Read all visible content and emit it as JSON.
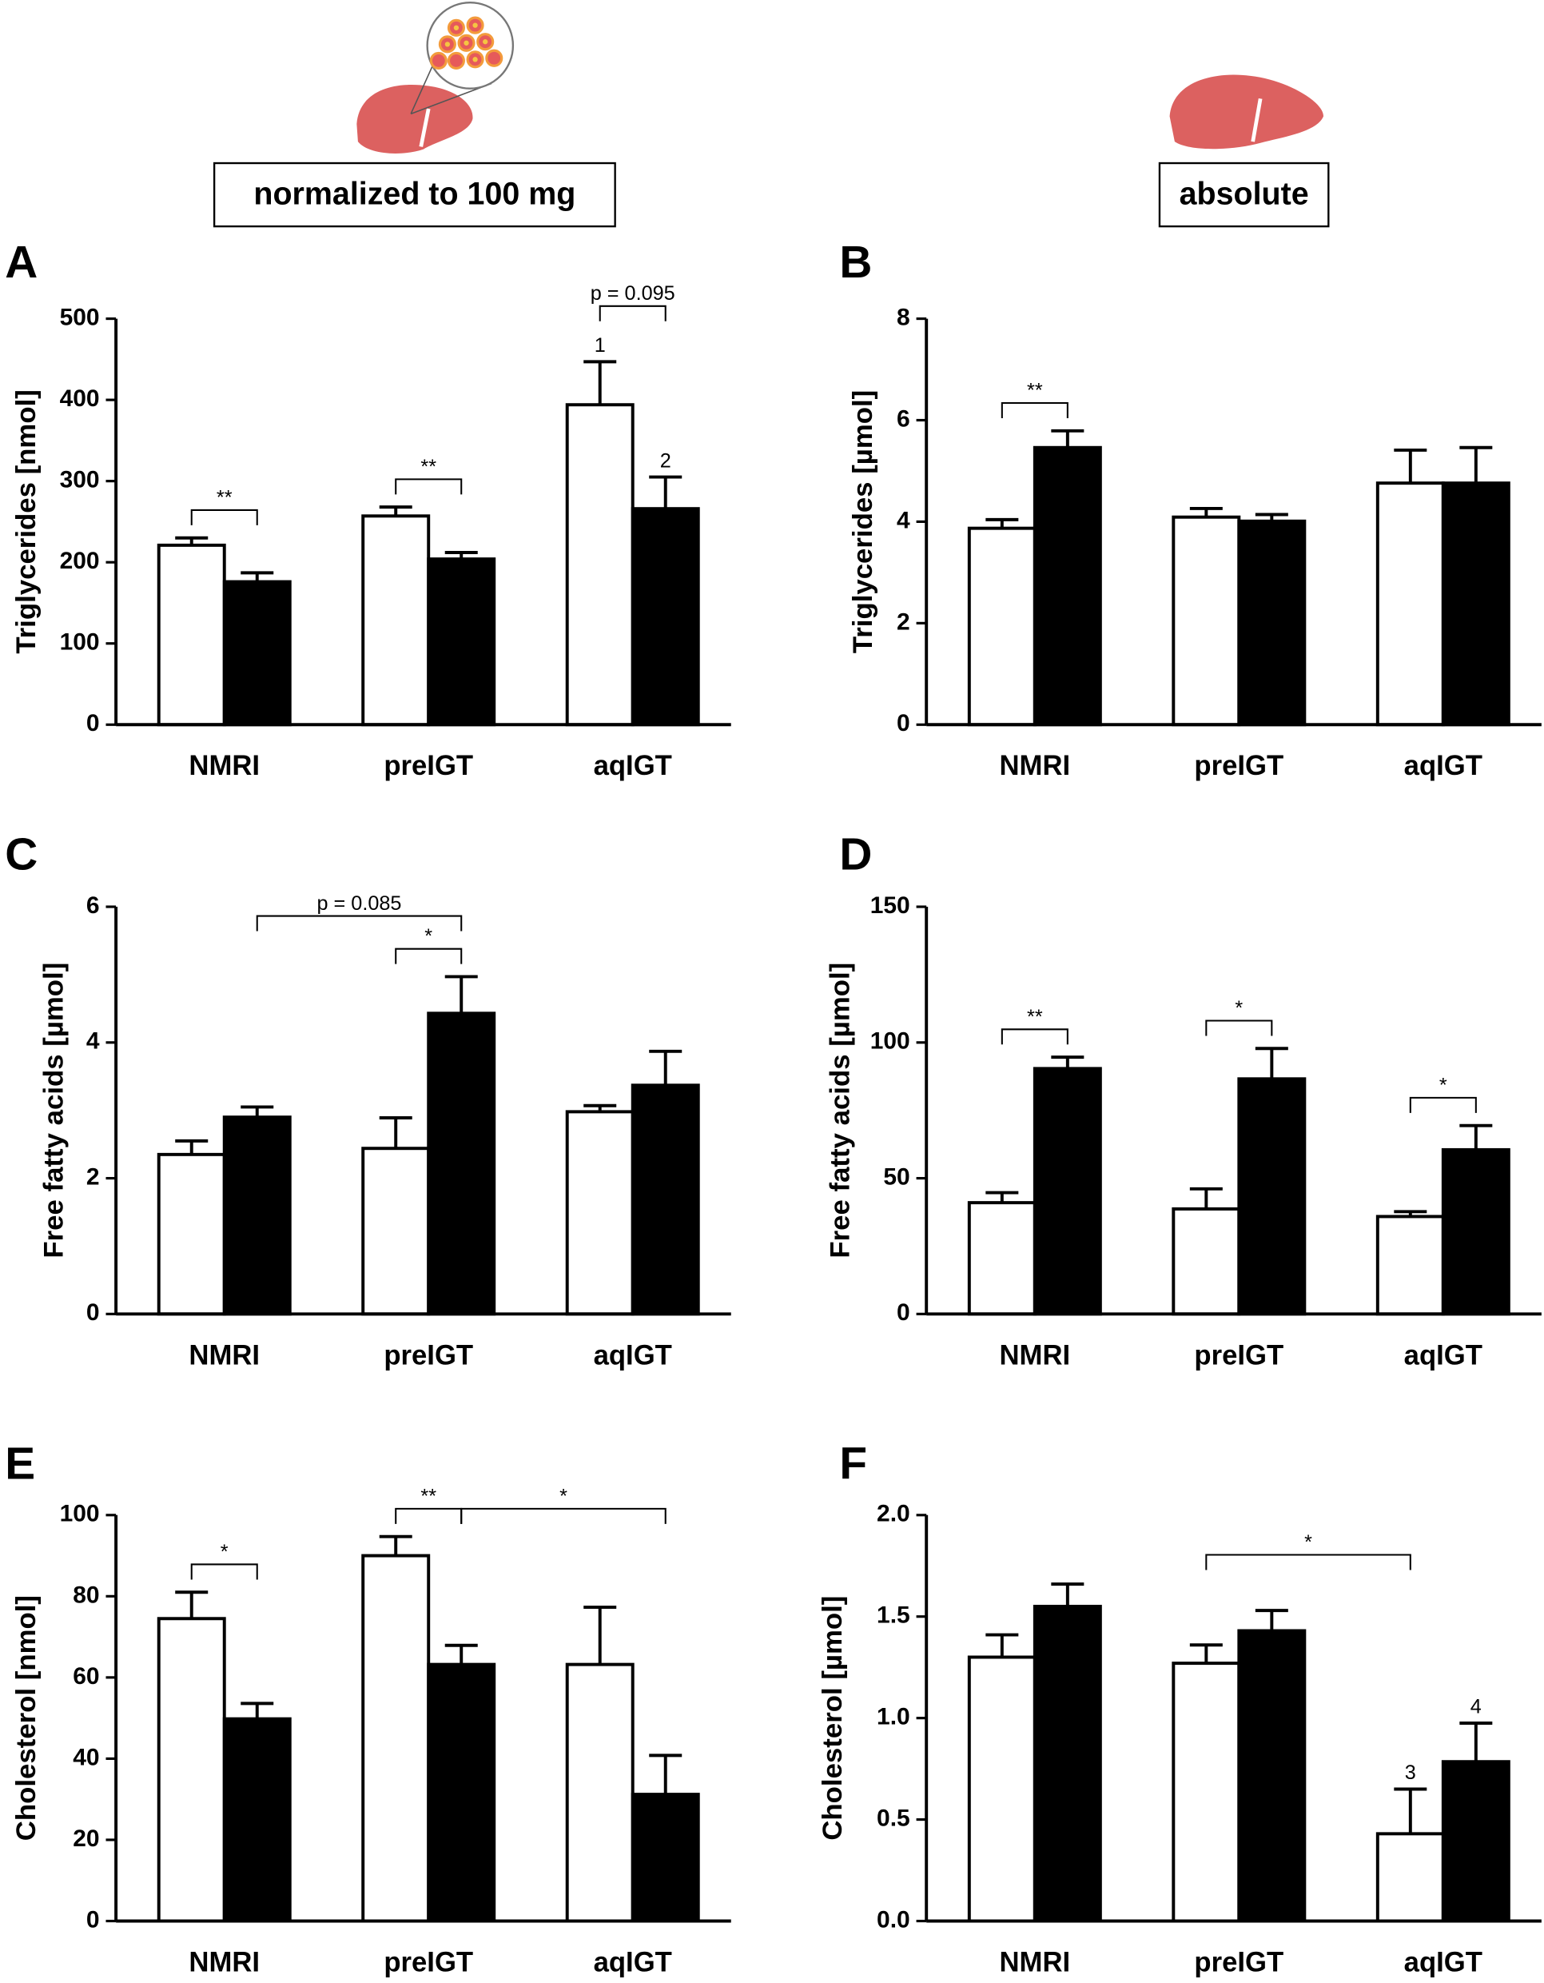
{
  "headers": [
    "normalized to 100 mg",
    "absolute"
  ],
  "chart_data": [
    {
      "type": "bar",
      "label": "A",
      "ylabel": "Triglycerides [nmol]",
      "categories": [
        "NMRI",
        "preIGT",
        "aqIGT"
      ],
      "series": [
        {
          "color": "#ffffff",
          "values": [
            221,
            257,
            394
          ],
          "errors": [
            9,
            11,
            53
          ]
        },
        {
          "color": "#000000",
          "values": [
            176,
            204,
            266
          ],
          "errors": [
            11,
            8,
            39
          ]
        }
      ],
      "ylim": [
        0,
        500
      ],
      "yticks": [
        0,
        100,
        200,
        300,
        400,
        500
      ],
      "annotations": [
        {
          "text": "**",
          "from": [
            0,
            0
          ],
          "to": [
            1,
            0
          ]
        },
        {
          "text": "**",
          "from": [
            0,
            1
          ],
          "to": [
            1,
            1
          ]
        },
        {
          "text": "p = 0.095",
          "from": [
            0,
            2
          ],
          "to": [
            1,
            2
          ]
        }
      ],
      "bar_notes": [
        {
          "text": "1",
          "series": 0,
          "index": 2
        },
        {
          "text": "2",
          "series": 1,
          "index": 2
        }
      ]
    },
    {
      "type": "bar",
      "label": "B",
      "ylabel": "Triglycerides [µmol]",
      "categories": [
        "NMRI",
        "preIGT",
        "aqIGT"
      ],
      "series": [
        {
          "color": "#ffffff",
          "values": [
            3.87,
            4.09,
            4.76
          ],
          "errors": [
            0.17,
            0.17,
            0.65
          ]
        },
        {
          "color": "#000000",
          "values": [
            5.46,
            4.01,
            4.76
          ],
          "errors": [
            0.33,
            0.13,
            0.7
          ]
        }
      ],
      "ylim": [
        0,
        8
      ],
      "yticks": [
        0,
        2,
        4,
        6,
        8
      ],
      "annotations": [
        {
          "text": "**",
          "from": [
            0,
            0
          ],
          "to": [
            1,
            0
          ]
        }
      ]
    },
    {
      "type": "bar",
      "label": "C",
      "ylabel": "Free fatty acids [µmol]",
      "categories": [
        "NMRI",
        "preIGT",
        "aqIGT"
      ],
      "series": [
        {
          "color": "#ffffff",
          "values": [
            2.35,
            2.44,
            2.98
          ],
          "errors": [
            0.2,
            0.45,
            0.09
          ]
        },
        {
          "color": "#000000",
          "values": [
            2.9,
            4.43,
            3.37
          ],
          "errors": [
            0.15,
            0.54,
            0.5
          ]
        }
      ],
      "ylim": [
        0,
        6
      ],
      "yticks": [
        0,
        2,
        4,
        6
      ],
      "annotations": [
        {
          "text": "*",
          "from": [
            0,
            1
          ],
          "to": [
            1,
            1
          ]
        },
        {
          "text": "p = 0.085",
          "from": [
            1,
            0
          ],
          "to": [
            1,
            1
          ]
        }
      ]
    },
    {
      "type": "bar",
      "label": "D",
      "ylabel": "Free fatty acids [µmol]",
      "categories": [
        "NMRI",
        "preIGT",
        "aqIGT"
      ],
      "series": [
        {
          "color": "#ffffff",
          "values": [
            41,
            38.7,
            35.9
          ],
          "errors": [
            3.7,
            7.4,
            1.8
          ]
        },
        {
          "color": "#000000",
          "values": [
            90.4,
            86.6,
            60.5
          ],
          "errors": [
            4.2,
            11.2,
            8.9
          ]
        }
      ],
      "ylim": [
        0,
        150
      ],
      "yticks": [
        0,
        50,
        100,
        150
      ],
      "annotations": [
        {
          "text": "**",
          "from": [
            0,
            0
          ],
          "to": [
            1,
            0
          ]
        },
        {
          "text": "*",
          "from": [
            0,
            1
          ],
          "to": [
            1,
            1
          ]
        },
        {
          "text": "*",
          "from": [
            0,
            2
          ],
          "to": [
            1,
            2
          ]
        }
      ]
    },
    {
      "type": "bar",
      "label": "E",
      "ylabel": "Cholesterol [nmol]",
      "categories": [
        "NMRI",
        "preIGT",
        "aqIGT"
      ],
      "series": [
        {
          "color": "#ffffff",
          "values": [
            74.5,
            90,
            63.2
          ],
          "errors": [
            6.5,
            4.7,
            14.1
          ]
        },
        {
          "color": "#000000",
          "values": [
            49.8,
            63.2,
            31.2
          ],
          "errors": [
            3.8,
            4.7,
            9.6
          ]
        }
      ],
      "ylim": [
        0,
        100
      ],
      "yticks": [
        0,
        20,
        40,
        60,
        80,
        100
      ],
      "annotations": [
        {
          "text": "*",
          "from": [
            0,
            0
          ],
          "to": [
            1,
            0
          ]
        },
        {
          "text": "**",
          "from": [
            0,
            1
          ],
          "to": [
            1,
            1
          ]
        },
        {
          "text": "*",
          "from": [
            1,
            1
          ],
          "to": [
            1,
            2
          ]
        }
      ]
    },
    {
      "type": "bar",
      "label": "F",
      "ylabel": "Cholesterol [µmol]",
      "categories": [
        "NMRI",
        "preIGT",
        "aqIGT"
      ],
      "series": [
        {
          "color": "#ffffff",
          "values": [
            1.3,
            1.27,
            0.43
          ],
          "errors": [
            0.11,
            0.09,
            0.22
          ]
        },
        {
          "color": "#000000",
          "values": [
            1.55,
            1.43,
            0.785
          ],
          "errors": [
            0.11,
            0.1,
            0.19
          ]
        }
      ],
      "ylim": [
        0,
        2
      ],
      "yticks": [
        {
          "value": 0,
          "label": "0.0"
        },
        0.5,
        {
          "value": 1,
          "label": "1.0"
        },
        1.5,
        {
          "value": 2,
          "label": "2.0"
        }
      ],
      "annotations": [
        {
          "text": "*",
          "from": [
            0,
            1
          ],
          "to": [
            0,
            2
          ]
        }
      ],
      "bar_notes": [
        {
          "text": "3",
          "series": 0,
          "index": 2
        },
        {
          "text": "4",
          "series": 1,
          "index": 2
        }
      ]
    }
  ]
}
